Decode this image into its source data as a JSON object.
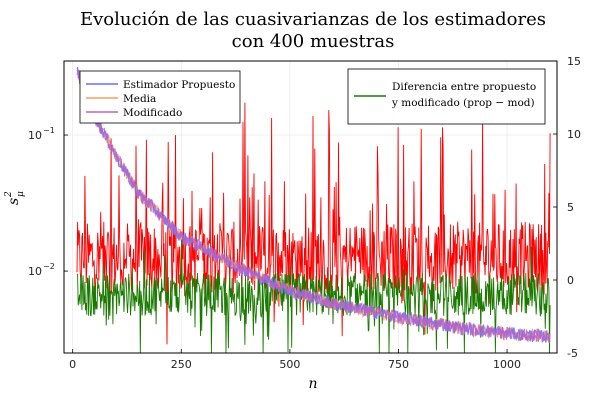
{
  "chart_data": {
    "type": "line",
    "title": [
      "Evolución de las cuasivarianzas de los estimadores",
      "con 400 muestras"
    ],
    "xlabel": "n",
    "ylabel_main": "s",
    "ylabel_sup": "2",
    "ylabel_sub": "μ",
    "x_range": [
      -20,
      1115
    ],
    "x_ticks": [
      0,
      250,
      500,
      750,
      1000
    ],
    "y_left": {
      "scale": "log",
      "range": [
        0.0025,
        0.35
      ],
      "ticks": [
        {
          "value": 0.1,
          "base": "10",
          "exp": "−1"
        },
        {
          "value": 0.01,
          "base": "10",
          "exp": "−2"
        }
      ]
    },
    "y_right": {
      "scale": "linear",
      "range": [
        -5,
        15
      ],
      "ticks": [
        -5,
        0,
        5,
        10,
        15
      ]
    },
    "grid": true,
    "series_left": [
      {
        "name": "Estimador Propuesto",
        "color": "#6b6bff",
        "x_start": 10,
        "x_end": 1100,
        "values_at": [
          [
            10,
            0.3
          ],
          [
            50,
            0.14
          ],
          [
            100,
            0.07
          ],
          [
            150,
            0.038
          ],
          [
            250,
            0.018
          ],
          [
            400,
            0.01
          ],
          [
            500,
            0.0072
          ],
          [
            600,
            0.0058
          ],
          [
            750,
            0.0046
          ],
          [
            900,
            0.0038
          ],
          [
            1000,
            0.0035
          ],
          [
            1100,
            0.0033
          ]
        ]
      },
      {
        "name": "Media",
        "color": "#f0a060",
        "x_start": 10,
        "x_end": 1100,
        "values_at": [
          [
            10,
            0.3
          ],
          [
            50,
            0.14
          ],
          [
            100,
            0.07
          ],
          [
            150,
            0.038
          ],
          [
            250,
            0.018
          ],
          [
            400,
            0.01
          ],
          [
            500,
            0.0072
          ],
          [
            600,
            0.0058
          ],
          [
            750,
            0.0046
          ],
          [
            900,
            0.0038
          ],
          [
            1000,
            0.0035
          ],
          [
            1100,
            0.0033
          ]
        ]
      },
      {
        "name": "Modificado",
        "color": "#c060c0",
        "x_start": 10,
        "x_end": 1100,
        "values_at": [
          [
            10,
            0.3
          ],
          [
            50,
            0.14
          ],
          [
            100,
            0.07
          ],
          [
            150,
            0.038
          ],
          [
            250,
            0.018
          ],
          [
            400,
            0.01
          ],
          [
            500,
            0.0072
          ],
          [
            600,
            0.0058
          ],
          [
            750,
            0.0046
          ],
          [
            900,
            0.0038
          ],
          [
            1000,
            0.0035
          ],
          [
            1100,
            0.0033
          ]
        ]
      }
    ],
    "series_right": [
      {
        "name": "Diferencia entre propuesto y modificado (prop − mod)",
        "color": "#ff0000",
        "x_start": 10,
        "x_end": 1100,
        "baseline": 1.5,
        "min": -5,
        "max": 13
      },
      {
        "name": "Diferencia entre propuesto y modificado (prop − mod)",
        "color": "#1a7a00",
        "x_start": 10,
        "x_end": 1100,
        "baseline": -1,
        "min": -5,
        "max": 3
      }
    ],
    "legend_left": {
      "placement": "top-left",
      "entries": [
        {
          "label": "Estimador Propuesto",
          "color": "#6b6bff"
        },
        {
          "label": "Media",
          "color": "#f0a060"
        },
        {
          "label": "Modificado",
          "color": "#c060c0"
        }
      ]
    },
    "legend_right": {
      "placement": "top-right",
      "entries": [
        {
          "label_line1": "Diferencia entre propuesto",
          "label_line2": "y modificado (prop  −  mod)",
          "color": "#1a7a00"
        }
      ]
    }
  }
}
